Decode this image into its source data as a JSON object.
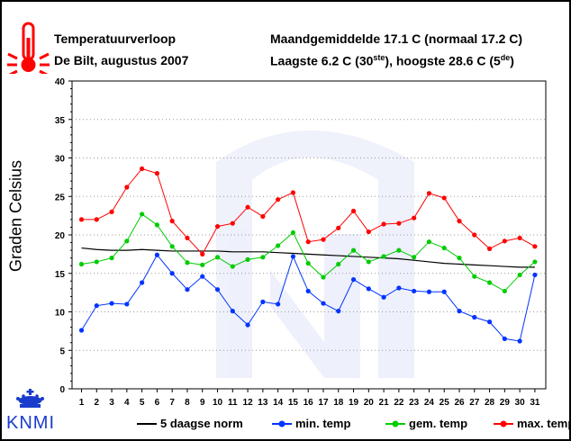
{
  "header": {
    "title": "Temperatuurverloop",
    "subtitle": "De Bilt, augustus 2007",
    "stats_line1": "Maandgemiddelde 17.1  C (normaal 17.2  C)",
    "stats_line2_pre": "Laagste 6.2  C (30",
    "stats_line2_sup1": "ste",
    "stats_line2_mid": "), hoogste 28.6  C (5",
    "stats_line2_sup2": "de",
    "stats_line2_post": ")"
  },
  "logo_text": "KNMI",
  "colors": {
    "norm": "#000000",
    "min": "#0033ff",
    "gem": "#00cc00",
    "max": "#ff0000",
    "thermo": "#ff0000",
    "logo": "#1a3ccc"
  },
  "chart_data": {
    "type": "line",
    "ylabel": "Graden Celsius",
    "xlabel": "",
    "ylim": [
      0,
      40
    ],
    "yticks": [
      "0",
      "5",
      "10",
      "15",
      "20",
      "25",
      "30",
      "35",
      "40"
    ],
    "categories": [
      "1",
      "2",
      "3",
      "4",
      "5",
      "6",
      "7",
      "8",
      "9",
      "10",
      "11",
      "12",
      "13",
      "14",
      "15",
      "16",
      "17",
      "18",
      "19",
      "20",
      "21",
      "22",
      "23",
      "24",
      "25",
      "26",
      "27",
      "28",
      "29",
      "30",
      "31"
    ],
    "legend_position": "bottom",
    "grid": true,
    "series": [
      {
        "name": "5 daagse norm",
        "key": "norm",
        "markers": false,
        "values": [
          18.3,
          18.1,
          18.0,
          18.0,
          18.1,
          18.0,
          17.9,
          17.9,
          17.9,
          17.9,
          17.8,
          17.8,
          17.8,
          17.7,
          17.6,
          17.5,
          17.4,
          17.3,
          17.2,
          17.1,
          17.0,
          16.9,
          16.7,
          16.5,
          16.3,
          16.2,
          16.1,
          16.0,
          15.9,
          15.8,
          15.8
        ]
      },
      {
        "name": "min. temp",
        "key": "min",
        "markers": true,
        "values": [
          7.6,
          10.8,
          11.1,
          11.0,
          13.8,
          17.4,
          15.0,
          12.9,
          14.6,
          12.9,
          10.1,
          8.3,
          11.3,
          11.0,
          17.2,
          12.7,
          11.1,
          10.1,
          14.2,
          13.0,
          11.9,
          13.1,
          12.7,
          12.6,
          12.6,
          10.1,
          9.3,
          8.7,
          6.5,
          6.2,
          14.8
        ]
      },
      {
        "name": "gem. temp",
        "key": "gem",
        "markers": true,
        "values": [
          16.2,
          16.5,
          17.0,
          19.2,
          22.7,
          21.3,
          18.5,
          16.4,
          16.1,
          17.1,
          15.9,
          16.8,
          17.1,
          18.6,
          20.3,
          16.3,
          14.5,
          16.2,
          18.0,
          16.5,
          17.2,
          18.0,
          17.1,
          19.1,
          18.3,
          17.0,
          14.6,
          13.8,
          12.7,
          14.8,
          16.5
        ]
      },
      {
        "name": "max. temp",
        "key": "max",
        "markers": true,
        "values": [
          22.0,
          22.0,
          23.0,
          26.2,
          28.6,
          28.0,
          21.8,
          19.6,
          17.5,
          21.1,
          21.5,
          23.6,
          22.4,
          24.6,
          25.5,
          19.1,
          19.4,
          20.9,
          23.1,
          20.4,
          21.4,
          21.5,
          22.2,
          25.4,
          24.8,
          21.8,
          20.0,
          18.2,
          19.2,
          19.6,
          18.5
        ]
      }
    ]
  }
}
